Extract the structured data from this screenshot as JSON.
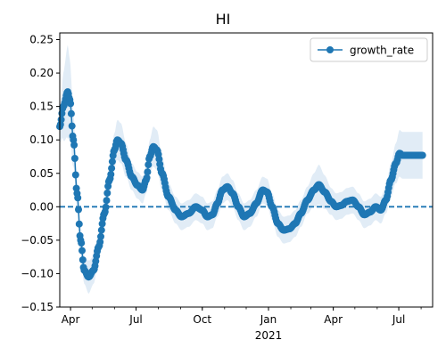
{
  "chart_data": {
    "type": "line",
    "title": "HI",
    "xlabel": "",
    "ylabel": "",
    "ylim": [
      -0.15,
      0.26
    ],
    "x_range": [
      "2020-03-17",
      "2021-08-17"
    ],
    "yticks": [
      -0.15,
      -0.1,
      -0.05,
      0.0,
      0.05,
      0.1,
      0.15,
      0.2,
      0.25
    ],
    "ytick_labels": [
      "−0.15",
      "−0.10",
      "−0.05",
      "0.00",
      "0.05",
      "0.10",
      "0.15",
      "0.20",
      "0.25"
    ],
    "xticks": [
      {
        "date": "2020-04-01",
        "label": "Apr"
      },
      {
        "date": "2020-07-01",
        "label": "Jul"
      },
      {
        "date": "2020-10-01",
        "label": "Oct"
      },
      {
        "date": "2021-01-01",
        "label": "Jan"
      },
      {
        "date": "2021-04-01",
        "label": "Apr"
      },
      {
        "date": "2021-07-01",
        "label": "Jul"
      }
    ],
    "year_label": {
      "date": "2021-01-01",
      "text": "2021"
    },
    "legend": {
      "position": "top-right",
      "entries": [
        "growth_rate"
      ]
    },
    "reference_line": {
      "y": 0.0,
      "style": "dashed"
    },
    "series": [
      {
        "name": "growth_rate",
        "color": "#1f77b4",
        "band_color": "#dce9f5",
        "anchors": [
          {
            "date": "2020-03-17",
            "y": 0.12,
            "band": 0.02
          },
          {
            "date": "2020-03-22",
            "y": 0.15,
            "band": 0.05
          },
          {
            "date": "2020-03-28",
            "y": 0.172,
            "band": 0.07
          },
          {
            "date": "2020-03-31",
            "y": 0.16,
            "band": 0.06
          },
          {
            "date": "2020-04-05",
            "y": 0.1,
            "band": 0.04
          },
          {
            "date": "2020-04-10",
            "y": 0.02,
            "band": 0.02
          },
          {
            "date": "2020-04-15",
            "y": -0.05,
            "band": 0.02
          },
          {
            "date": "2020-04-20",
            "y": -0.095,
            "band": 0.02
          },
          {
            "date": "2020-04-26",
            "y": -0.105,
            "band": 0.025
          },
          {
            "date": "2020-05-03",
            "y": -0.095,
            "band": 0.02
          },
          {
            "date": "2020-05-10",
            "y": -0.06,
            "band": 0.02
          },
          {
            "date": "2020-05-18",
            "y": -0.01,
            "band": 0.02
          },
          {
            "date": "2020-05-25",
            "y": 0.04,
            "band": 0.02
          },
          {
            "date": "2020-06-01",
            "y": 0.085,
            "band": 0.025
          },
          {
            "date": "2020-06-05",
            "y": 0.1,
            "band": 0.03
          },
          {
            "date": "2020-06-10",
            "y": 0.095,
            "band": 0.03
          },
          {
            "date": "2020-06-17",
            "y": 0.07,
            "band": 0.025
          },
          {
            "date": "2020-06-25",
            "y": 0.045,
            "band": 0.02
          },
          {
            "date": "2020-07-03",
            "y": 0.032,
            "band": 0.02
          },
          {
            "date": "2020-07-10",
            "y": 0.025,
            "band": 0.02
          },
          {
            "date": "2020-07-15",
            "y": 0.04,
            "band": 0.02
          },
          {
            "date": "2020-07-20",
            "y": 0.075,
            "band": 0.025
          },
          {
            "date": "2020-07-25",
            "y": 0.09,
            "band": 0.03
          },
          {
            "date": "2020-07-30",
            "y": 0.085,
            "band": 0.03
          },
          {
            "date": "2020-08-06",
            "y": 0.05,
            "band": 0.025
          },
          {
            "date": "2020-08-15",
            "y": 0.015,
            "band": 0.02
          },
          {
            "date": "2020-08-25",
            "y": -0.005,
            "band": 0.02
          },
          {
            "date": "2020-09-02",
            "y": -0.015,
            "band": 0.02
          },
          {
            "date": "2020-09-12",
            "y": -0.01,
            "band": 0.02
          },
          {
            "date": "2020-09-22",
            "y": 0.0,
            "band": 0.02
          },
          {
            "date": "2020-10-01",
            "y": -0.005,
            "band": 0.02
          },
          {
            "date": "2020-10-08",
            "y": -0.015,
            "band": 0.02
          },
          {
            "date": "2020-10-15",
            "y": -0.012,
            "band": 0.02
          },
          {
            "date": "2020-10-22",
            "y": 0.005,
            "band": 0.02
          },
          {
            "date": "2020-10-29",
            "y": 0.025,
            "band": 0.02
          },
          {
            "date": "2020-11-05",
            "y": 0.03,
            "band": 0.02
          },
          {
            "date": "2020-11-12",
            "y": 0.02,
            "band": 0.02
          },
          {
            "date": "2020-11-20",
            "y": 0.0,
            "band": 0.02
          },
          {
            "date": "2020-11-28",
            "y": -0.015,
            "band": 0.02
          },
          {
            "date": "2020-12-06",
            "y": -0.01,
            "band": 0.02
          },
          {
            "date": "2020-12-15",
            "y": 0.005,
            "band": 0.02
          },
          {
            "date": "2020-12-24",
            "y": 0.025,
            "band": 0.02
          },
          {
            "date": "2020-12-30",
            "y": 0.022,
            "band": 0.02
          },
          {
            "date": "2021-01-06",
            "y": 0.0,
            "band": 0.02
          },
          {
            "date": "2021-01-14",
            "y": -0.025,
            "band": 0.02
          },
          {
            "date": "2021-01-22",
            "y": -0.035,
            "band": 0.02
          },
          {
            "date": "2021-01-30",
            "y": -0.033,
            "band": 0.02
          },
          {
            "date": "2021-02-07",
            "y": -0.025,
            "band": 0.02
          },
          {
            "date": "2021-02-15",
            "y": -0.01,
            "band": 0.02
          },
          {
            "date": "2021-02-24",
            "y": 0.01,
            "band": 0.02
          },
          {
            "date": "2021-03-05",
            "y": 0.025,
            "band": 0.025
          },
          {
            "date": "2021-03-12",
            "y": 0.033,
            "band": 0.03
          },
          {
            "date": "2021-03-20",
            "y": 0.022,
            "band": 0.025
          },
          {
            "date": "2021-03-29",
            "y": 0.008,
            "band": 0.02
          },
          {
            "date": "2021-04-05",
            "y": 0.0,
            "band": 0.02
          },
          {
            "date": "2021-04-12",
            "y": 0.002,
            "band": 0.02
          },
          {
            "date": "2021-04-20",
            "y": 0.008,
            "band": 0.02
          },
          {
            "date": "2021-04-28",
            "y": 0.01,
            "band": 0.02
          },
          {
            "date": "2021-05-06",
            "y": 0.0,
            "band": 0.02
          },
          {
            "date": "2021-05-14",
            "y": -0.012,
            "band": 0.02
          },
          {
            "date": "2021-05-22",
            "y": -0.008,
            "band": 0.02
          },
          {
            "date": "2021-05-30",
            "y": 0.0,
            "band": 0.02
          },
          {
            "date": "2021-06-06",
            "y": -0.005,
            "band": 0.02
          },
          {
            "date": "2021-06-13",
            "y": 0.01,
            "band": 0.02
          },
          {
            "date": "2021-06-20",
            "y": 0.04,
            "band": 0.025
          },
          {
            "date": "2021-06-27",
            "y": 0.065,
            "band": 0.03
          },
          {
            "date": "2021-07-02",
            "y": 0.08,
            "band": 0.035
          },
          {
            "date": "2021-07-06",
            "y": 0.077,
            "band": 0.035
          },
          {
            "date": "2021-07-15",
            "y": 0.077,
            "band": 0.035
          },
          {
            "date": "2021-08-03",
            "y": 0.077,
            "band": 0.035
          }
        ]
      }
    ]
  }
}
